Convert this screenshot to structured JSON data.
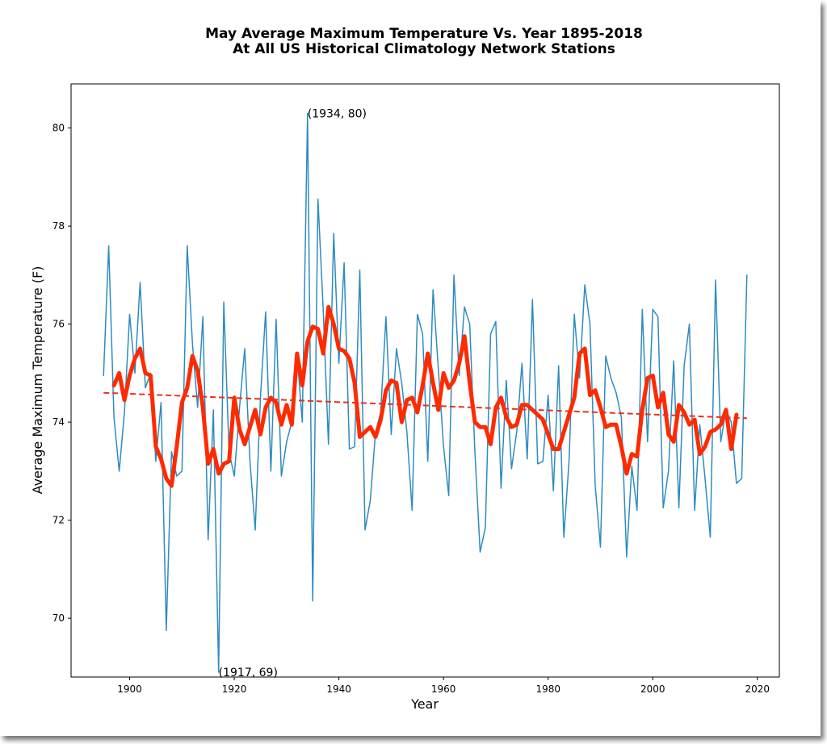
{
  "chart_data": {
    "type": "line",
    "title": "May Average Maximum Temperature Vs. Year 1895-2018",
    "subtitle": "At All US Historical Climatology Network Stations",
    "xlabel": "Year",
    "ylabel": "Average Maximum Temperature (F)",
    "xlim": [
      1888.8,
      2024.2
    ],
    "ylim": [
      68.8,
      80.9
    ],
    "xticks": [
      1900,
      1920,
      1940,
      1960,
      1980,
      2000,
      2020
    ],
    "yticks": [
      70,
      72,
      74,
      76,
      78,
      80
    ],
    "grid": false,
    "colors": {
      "annual": "#2e8bc0",
      "smoothed": "#ff2a00",
      "trend": "#e8321e"
    },
    "series": [
      {
        "style": "thin-line",
        "x": [
          1895,
          1896,
          1897,
          1898,
          1899,
          1900,
          1901,
          1902,
          1903,
          1904,
          1905,
          1906,
          1907,
          1908,
          1909,
          1910,
          1911,
          1912,
          1913,
          1914,
          1915,
          1916,
          1917,
          1918,
          1919,
          1920,
          1921,
          1922,
          1923,
          1924,
          1925,
          1926,
          1927,
          1928,
          1929,
          1930,
          1931,
          1932,
          1933,
          1934,
          1935,
          1936,
          1937,
          1938,
          1939,
          1940,
          1941,
          1942,
          1943,
          1944,
          1945,
          1946,
          1947,
          1948,
          1949,
          1950,
          1951,
          1952,
          1953,
          1954,
          1955,
          1956,
          1957,
          1958,
          1959,
          1960,
          1961,
          1962,
          1963,
          1964,
          1965,
          1966,
          1967,
          1968,
          1969,
          1970,
          1971,
          1972,
          1973,
          1974,
          1975,
          1976,
          1977,
          1978,
          1979,
          1980,
          1981,
          1982,
          1983,
          1984,
          1985,
          1986,
          1987,
          1988,
          1989,
          1990,
          1991,
          1992,
          1993,
          1994,
          1995,
          1996,
          1997,
          1998,
          1999,
          2000,
          2001,
          2002,
          2003,
          2004,
          2005,
          2006,
          2007,
          2008,
          2009,
          2010,
          2011,
          2012,
          2013,
          2014,
          2015,
          2016,
          2017,
          2018
        ],
        "y": [
          74.95,
          77.6,
          74.1,
          73.0,
          74.2,
          76.2,
          75.0,
          76.85,
          74.7,
          75.0,
          73.2,
          74.4,
          69.75,
          73.4,
          72.9,
          73.0,
          77.6,
          75.6,
          74.3,
          76.15,
          71.6,
          74.25,
          68.9,
          76.45,
          73.4,
          72.9,
          74.3,
          75.5,
          73.2,
          71.8,
          74.5,
          76.25,
          73.0,
          76.1,
          72.9,
          73.6,
          74.0,
          75.4,
          74.0,
          80.3,
          70.35,
          78.55,
          76.3,
          73.55,
          77.85,
          75.2,
          77.25,
          73.45,
          73.5,
          77.1,
          71.8,
          72.4,
          73.8,
          74.2,
          76.15,
          73.75,
          75.5,
          74.8,
          73.8,
          72.2,
          76.2,
          75.8,
          73.2,
          76.7,
          75.1,
          73.5,
          72.5,
          77.0,
          74.95,
          76.35,
          76.0,
          73.4,
          71.35,
          71.85,
          75.8,
          76.05,
          72.65,
          74.85,
          73.05,
          73.8,
          75.2,
          73.25,
          76.5,
          73.15,
          73.2,
          74.55,
          72.6,
          75.15,
          71.65,
          73.2,
          76.2,
          74.9,
          76.8,
          76.0,
          72.7,
          71.45,
          75.35,
          74.9,
          74.6,
          74.1,
          71.25,
          73.1,
          72.2,
          76.3,
          73.6,
          76.3,
          76.15,
          72.25,
          73.0,
          75.25,
          72.25,
          75.15,
          76.0,
          72.2,
          73.95,
          72.85,
          71.65,
          76.9,
          73.6,
          74.25,
          74.0,
          72.75,
          72.85,
          77.0
        ]
      },
      {
        "style": "thick-smoothed",
        "x": [
          1897,
          1898,
          1899,
          1900,
          1901,
          1902,
          1903,
          1904,
          1905,
          1906,
          1907,
          1908,
          1909,
          1910,
          1911,
          1912,
          1913,
          1914,
          1915,
          1916,
          1917,
          1918,
          1919,
          1920,
          1921,
          1922,
          1923,
          1924,
          1925,
          1926,
          1927,
          1928,
          1929,
          1930,
          1931,
          1932,
          1933,
          1934,
          1935,
          1936,
          1937,
          1938,
          1939,
          1940,
          1941,
          1942,
          1943,
          1944,
          1945,
          1946,
          1947,
          1948,
          1949,
          1950,
          1951,
          1952,
          1953,
          1954,
          1955,
          1956,
          1957,
          1958,
          1959,
          1960,
          1961,
          1962,
          1963,
          1964,
          1965,
          1966,
          1967,
          1968,
          1969,
          1970,
          1971,
          1972,
          1973,
          1974,
          1975,
          1976,
          1977,
          1978,
          1979,
          1980,
          1981,
          1982,
          1983,
          1984,
          1985,
          1986,
          1987,
          1988,
          1989,
          1990,
          1991,
          1992,
          1993,
          1994,
          1995,
          1996,
          1997,
          1998,
          1999,
          2000,
          2001,
          2002,
          2003,
          2004,
          2005,
          2006,
          2007,
          2008,
          2009,
          2010,
          2011,
          2012,
          2013,
          2014,
          2015,
          2016
        ],
        "y": [
          74.75,
          75.0,
          74.45,
          74.95,
          75.3,
          75.5,
          75.0,
          74.95,
          73.5,
          73.25,
          72.85,
          72.7,
          73.5,
          74.4,
          74.7,
          75.35,
          75.05,
          74.3,
          73.15,
          73.45,
          72.95,
          73.15,
          73.2,
          74.5,
          73.85,
          73.55,
          73.9,
          74.25,
          73.75,
          74.3,
          74.5,
          74.4,
          73.95,
          74.35,
          73.95,
          75.4,
          74.75,
          75.65,
          75.95,
          75.9,
          75.4,
          76.35,
          76.0,
          75.5,
          75.45,
          75.3,
          74.8,
          73.7,
          73.8,
          73.9,
          73.7,
          74.05,
          74.65,
          74.85,
          74.8,
          74.0,
          74.45,
          74.5,
          74.2,
          74.75,
          75.4,
          74.8,
          74.25,
          75.0,
          74.7,
          74.85,
          75.2,
          75.75,
          74.8,
          74.0,
          73.9,
          73.9,
          73.55,
          74.3,
          74.5,
          74.1,
          73.9,
          73.95,
          74.35,
          74.35,
          74.25,
          74.15,
          74.05,
          73.75,
          73.45,
          73.45,
          73.8,
          74.15,
          74.5,
          75.4,
          75.5,
          74.55,
          74.65,
          74.3,
          73.9,
          73.95,
          73.95,
          73.5,
          72.95,
          73.35,
          73.3,
          74.25,
          74.9,
          74.95,
          74.3,
          74.6,
          73.75,
          73.6,
          74.35,
          74.2,
          73.95,
          74.05,
          73.35,
          73.5,
          73.8,
          73.85,
          73.95,
          74.25,
          73.45,
          74.15
        ]
      },
      {
        "style": "dashed-trend",
        "x": [
          1895,
          2018
        ],
        "y": [
          74.6,
          74.08
        ]
      }
    ],
    "annotations": [
      {
        "text": "(1934, 80)",
        "x": 1934,
        "y": 80.3
      },
      {
        "text": "(1917, 69)",
        "x": 1917,
        "y": 68.9
      }
    ]
  }
}
